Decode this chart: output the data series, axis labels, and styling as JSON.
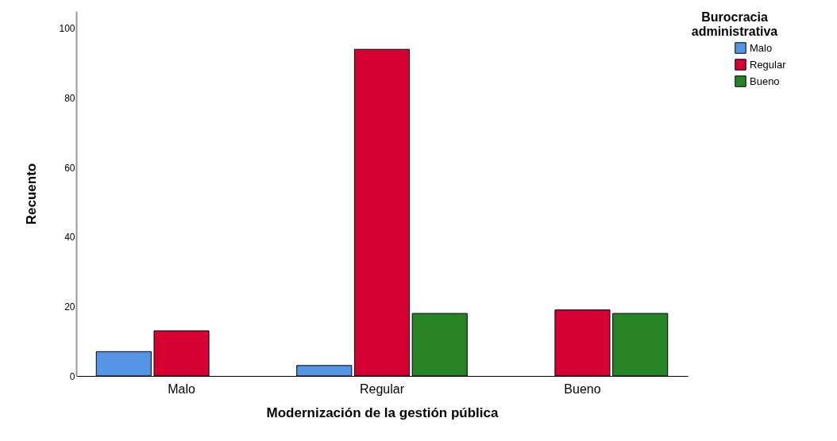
{
  "chart_data": {
    "type": "bar",
    "xlabel": "Modernización de la gestión pública",
    "ylabel": "Recuento",
    "legend_title": "Burocracia administrativa",
    "categories": [
      "Malo",
      "Regular",
      "Bueno"
    ],
    "series": [
      {
        "name": "Malo",
        "color": "#5595e5",
        "values": [
          7,
          3,
          null
        ]
      },
      {
        "name": "Regular",
        "color": "#d60032",
        "values": [
          13,
          94,
          19
        ]
      },
      {
        "name": "Bueno",
        "color": "#268426",
        "values": [
          null,
          18,
          18
        ]
      }
    ],
    "ylim": [
      0,
      105
    ],
    "yticks": [
      0,
      20,
      40,
      60,
      80,
      100
    ],
    "grid": false,
    "legend": "top right"
  }
}
